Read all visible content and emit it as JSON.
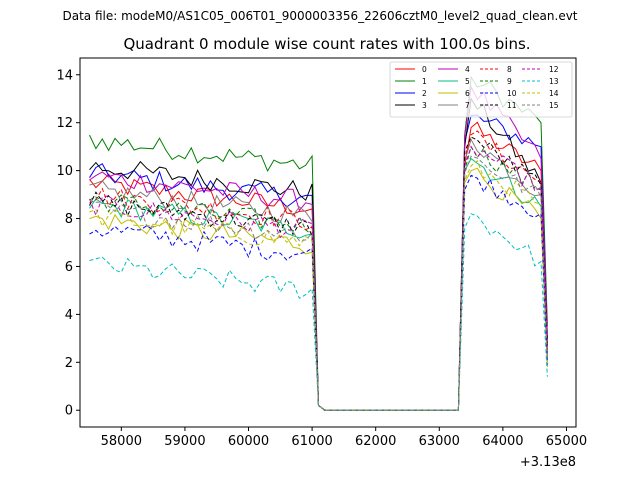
{
  "figure": {
    "suptitle": "Data file: modeM0/AS1C05_006T01_9000003356_22606cztM0_level2_quad_clean.evt"
  },
  "chart_data": {
    "type": "line",
    "title": "Quadrant 0 module wise count rates with 100.0s bins.",
    "xlabel": "",
    "ylabel": "",
    "x_offset_label": "+3.13e8",
    "xlim": [
      57350,
      65150
    ],
    "ylim": [
      -0.7,
      14.7
    ],
    "xticks": [
      58000,
      59000,
      60000,
      61000,
      62000,
      63000,
      64000,
      65000
    ],
    "xtick_labels": [
      "58000",
      "59000",
      "60000",
      "61000",
      "62000",
      "63000",
      "64000",
      "65000"
    ],
    "yticks": [
      0,
      2,
      4,
      6,
      8,
      10,
      12,
      14
    ],
    "ytick_labels": [
      "0",
      "2",
      "4",
      "6",
      "8",
      "10",
      "12",
      "14"
    ],
    "legend_position": "top-right",
    "time_bins": {
      "bin_size_s": 100,
      "segment1": {
        "start": 57500,
        "stop": 61000,
        "low_start": 61100
      },
      "gap_low": {
        "start": 61100,
        "stop": 63300,
        "value": 0
      },
      "segment2": {
        "start": 63300,
        "stop": 64700
      }
    },
    "series": [
      {
        "name": "0",
        "color": "#ff0000",
        "dash": "solid",
        "level1": 8.9,
        "ramp": 10.2,
        "peak": 11.8,
        "fall": 10.0,
        "end": 2.5
      },
      {
        "name": "1",
        "color": "#008000",
        "dash": "solid",
        "level1": 10.7,
        "ramp": 11.5,
        "peak": 13.9,
        "fall": 12.0,
        "end": 3.5
      },
      {
        "name": "2",
        "color": "#0000ff",
        "dash": "solid",
        "level1": 9.3,
        "ramp": 11.2,
        "peak": 12.3,
        "fall": 11.0,
        "end": 3.0
      },
      {
        "name": "3",
        "color": "#000000",
        "dash": "solid",
        "level1": 9.6,
        "ramp": 11.0,
        "peak": 13.0,
        "fall": 9.5,
        "end": 2.8
      },
      {
        "name": "4",
        "color": "#bf00bf",
        "dash": "solid",
        "level1": 9.2,
        "ramp": 11.4,
        "peak": 13.5,
        "fall": 10.5,
        "end": 3.0
      },
      {
        "name": "5",
        "color": "#00bf7f",
        "dash": "solid",
        "level1": 8.0,
        "ramp": 10.0,
        "peak": 10.5,
        "fall": 8.5,
        "end": 2.0
      },
      {
        "name": "6",
        "color": "#bfbf00",
        "dash": "solid",
        "level1": 7.4,
        "ramp": 9.5,
        "peak": 10.0,
        "fall": 8.0,
        "end": 1.8
      },
      {
        "name": "7",
        "color": "#808080",
        "dash": "solid",
        "level1": 8.6,
        "ramp": 10.4,
        "peak": 11.3,
        "fall": 9.0,
        "end": 2.4
      },
      {
        "name": "8",
        "color": "#ff0000",
        "dash": "dashed",
        "level1": 8.4,
        "ramp": 10.5,
        "peak": 11.5,
        "fall": 9.5,
        "end": 2.5
      },
      {
        "name": "9",
        "color": "#008000",
        "dash": "dashed",
        "level1": 8.2,
        "ramp": 10.0,
        "peak": 11.0,
        "fall": 9.2,
        "end": 2.2
      },
      {
        "name": "10",
        "color": "#0000ff",
        "dash": "dashed",
        "level1": 7.0,
        "ramp": 9.2,
        "peak": 9.8,
        "fall": 8.2,
        "end": 1.9
      },
      {
        "name": "11",
        "color": "#000000",
        "dash": "dashed",
        "level1": 8.1,
        "ramp": 10.8,
        "peak": 11.4,
        "fall": 9.4,
        "end": 2.6
      },
      {
        "name": "12",
        "color": "#bf00bf",
        "dash": "dashed",
        "level1": 8.0,
        "ramp": 10.2,
        "peak": 11.0,
        "fall": 9.3,
        "end": 2.3
      },
      {
        "name": "13",
        "color": "#00bfbf",
        "dash": "dashed",
        "level1": 5.5,
        "ramp": 7.6,
        "peak": 8.2,
        "fall": 6.2,
        "end": 1.4
      },
      {
        "name": "14",
        "color": "#bfbf00",
        "dash": "dashed",
        "level1": 7.5,
        "ramp": 9.6,
        "peak": 10.2,
        "fall": 8.6,
        "end": 2.0
      },
      {
        "name": "15",
        "color": "#808080",
        "dash": "dashed",
        "level1": 7.8,
        "ramp": 9.9,
        "peak": 10.6,
        "fall": 8.9,
        "end": 2.1
      }
    ]
  }
}
